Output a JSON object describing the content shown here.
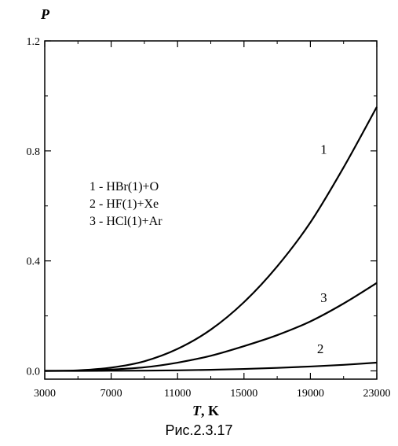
{
  "chart_data": {
    "type": "line",
    "title": "",
    "xlabel": "T, K",
    "xlabel_var": "T",
    "xlabel_unit": ", K",
    "ylabel": "P",
    "xlim": [
      3000,
      23000
    ],
    "ylim": [
      -0.03,
      1.2
    ],
    "x_ticks": [
      3000,
      7000,
      11000,
      15000,
      19000,
      23000
    ],
    "x_tick_labels": [
      "3000",
      "7000",
      "11000",
      "15000",
      "19000",
      "23000"
    ],
    "x_minor_ticks": [
      5000,
      9000,
      13000,
      17000,
      21000
    ],
    "y_ticks": [
      0.0,
      0.4,
      0.8,
      1.2
    ],
    "y_tick_labels": [
      "0.0",
      "0.4",
      "0.8",
      "1.2"
    ],
    "y_minor_ticks": [
      0.2,
      0.6,
      1.0
    ],
    "grid": false,
    "legend_position": "upper-left",
    "legend": [
      "1 - HBr(1)+O",
      "2 - HF(1)+Xe",
      "3 - HCl(1)+Ar"
    ],
    "series": [
      {
        "label": "1",
        "x": [
          3000,
          5000,
          7000,
          9000,
          11000,
          13000,
          15000,
          17000,
          19000,
          21000,
          23000
        ],
        "y": [
          0.0,
          0.002,
          0.012,
          0.035,
          0.08,
          0.15,
          0.25,
          0.38,
          0.54,
          0.74,
          0.96
        ]
      },
      {
        "label": "2",
        "x": [
          3000,
          5000,
          7000,
          9000,
          11000,
          13000,
          15000,
          17000,
          19000,
          21000,
          23000
        ],
        "y": [
          0.0,
          0.0,
          0.0005,
          0.001,
          0.002,
          0.004,
          0.007,
          0.011,
          0.016,
          0.022,
          0.03
        ]
      },
      {
        "label": "3",
        "x": [
          3000,
          5000,
          7000,
          9000,
          11000,
          13000,
          15000,
          17000,
          19000,
          21000,
          23000
        ],
        "y": [
          0.0,
          0.001,
          0.005,
          0.013,
          0.03,
          0.055,
          0.09,
          0.13,
          0.18,
          0.245,
          0.32
        ]
      }
    ],
    "curve_label_positions": [
      {
        "label": "1",
        "x": 19600,
        "y": 0.79
      },
      {
        "label": "3",
        "x": 19600,
        "y": 0.25
      },
      {
        "label": "2",
        "x": 19400,
        "y": 0.065
      }
    ]
  },
  "caption": "Рис.2.3.17"
}
